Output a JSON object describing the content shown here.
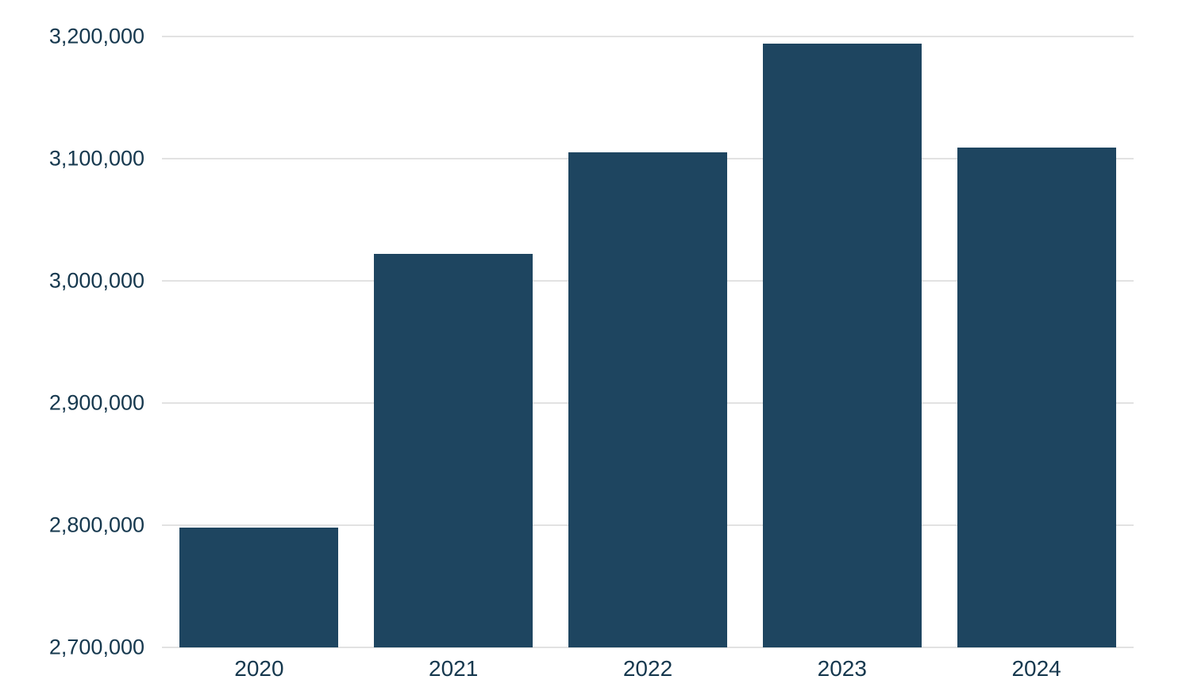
{
  "chart_data": {
    "type": "bar",
    "title": "",
    "xlabel": "",
    "ylabel": "",
    "categories": [
      "2020",
      "2021",
      "2022",
      "2023",
      "2024"
    ],
    "values": [
      2798000,
      3022000,
      3105000,
      3194000,
      3109000
    ],
    "ylim": [
      2700000,
      3200000
    ],
    "yticks": [
      {
        "value": 2700000,
        "label": "2,700,000"
      },
      {
        "value": 2800000,
        "label": "2,800,000"
      },
      {
        "value": 2900000,
        "label": "2,900,000"
      },
      {
        "value": 3000000,
        "label": "3,000,000"
      },
      {
        "value": 3100000,
        "label": "3,100,000"
      },
      {
        "value": 3200000,
        "label": "3,200,000"
      }
    ],
    "grid": true,
    "legend": false,
    "colors": {
      "bar": "#1e4560",
      "label": "#16384e",
      "gridline": "#e2e2e2",
      "background": "#ffffff"
    }
  }
}
